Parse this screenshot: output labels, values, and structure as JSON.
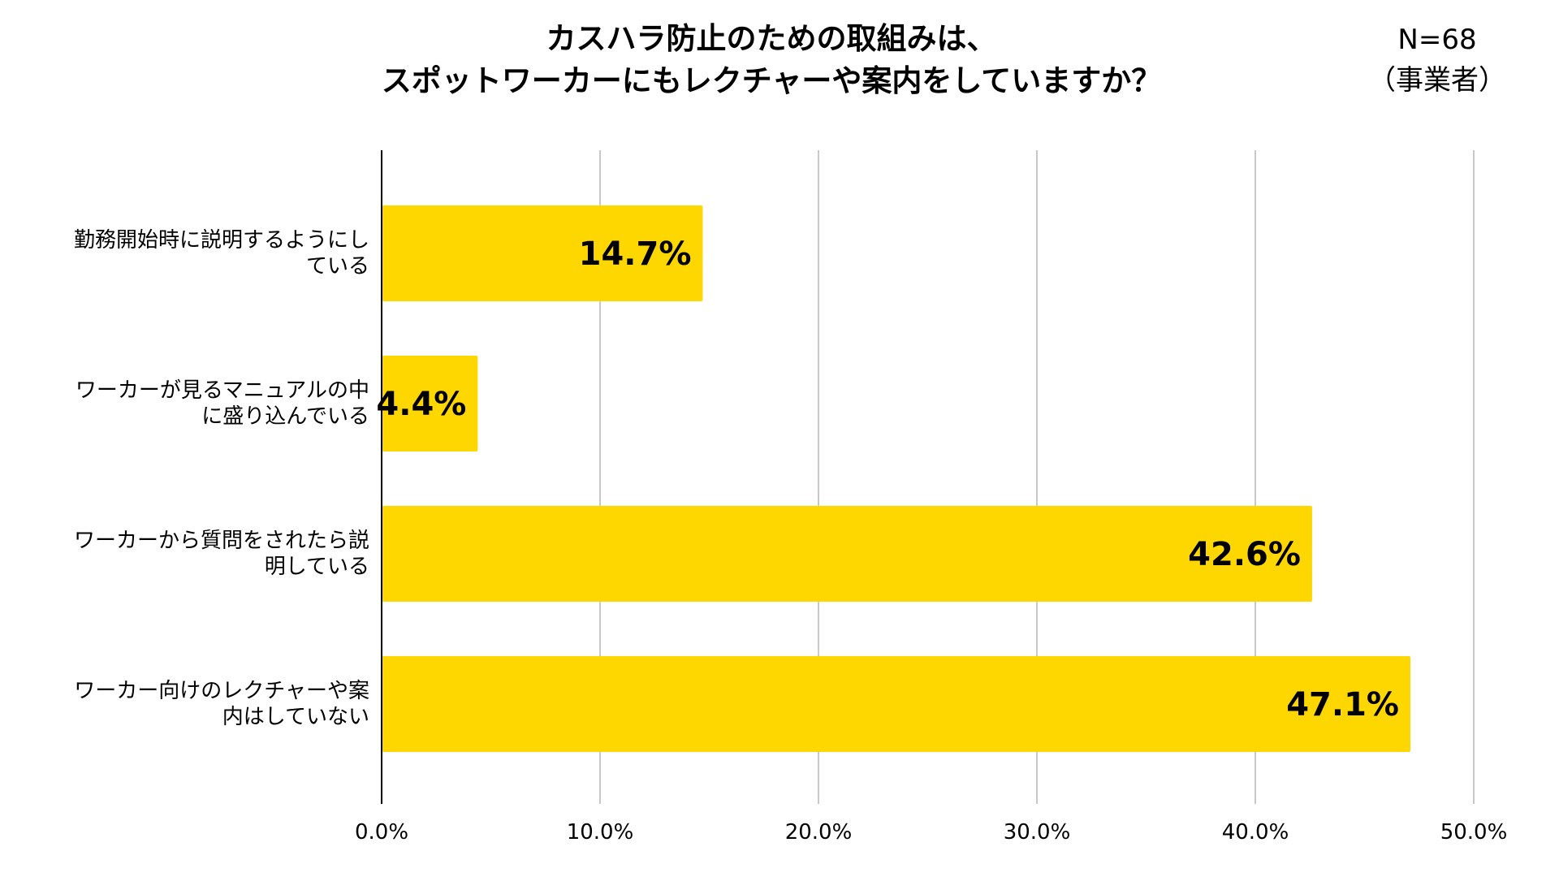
{
  "chart_data": {
    "type": "bar",
    "orientation": "horizontal",
    "title_lines": [
      "カスハラ防止のための取組みは、",
      "スポットワーカーにもレクチャーや案内をしていますか？"
    ],
    "sample_size": "N=68",
    "respondent": "（事業者）",
    "categories": [
      "勤務開始時に説明するようにしている",
      "ワーカーが見るマニュアルの中に盛り込んでいる",
      "ワーカーから質問をされたら説明している",
      "ワーカー向けのレクチャーや案内はしていない"
    ],
    "values": [
      14.7,
      4.4,
      42.6,
      47.1
    ],
    "data_labels": [
      "14.7%",
      "4.4%",
      "42.6%",
      "47.1%"
    ],
    "xlim": [
      0,
      50
    ],
    "xticks": [
      0,
      10,
      20,
      30,
      40,
      50
    ],
    "xtick_labels": [
      "0.0%",
      "10.0%",
      "20.0%",
      "30.0%",
      "40.0%",
      "50.0%"
    ],
    "grid": true,
    "legend": "none",
    "bar_color": "#FFD700",
    "grid_color": "#C8C8C8",
    "axis_color": "#000000"
  }
}
